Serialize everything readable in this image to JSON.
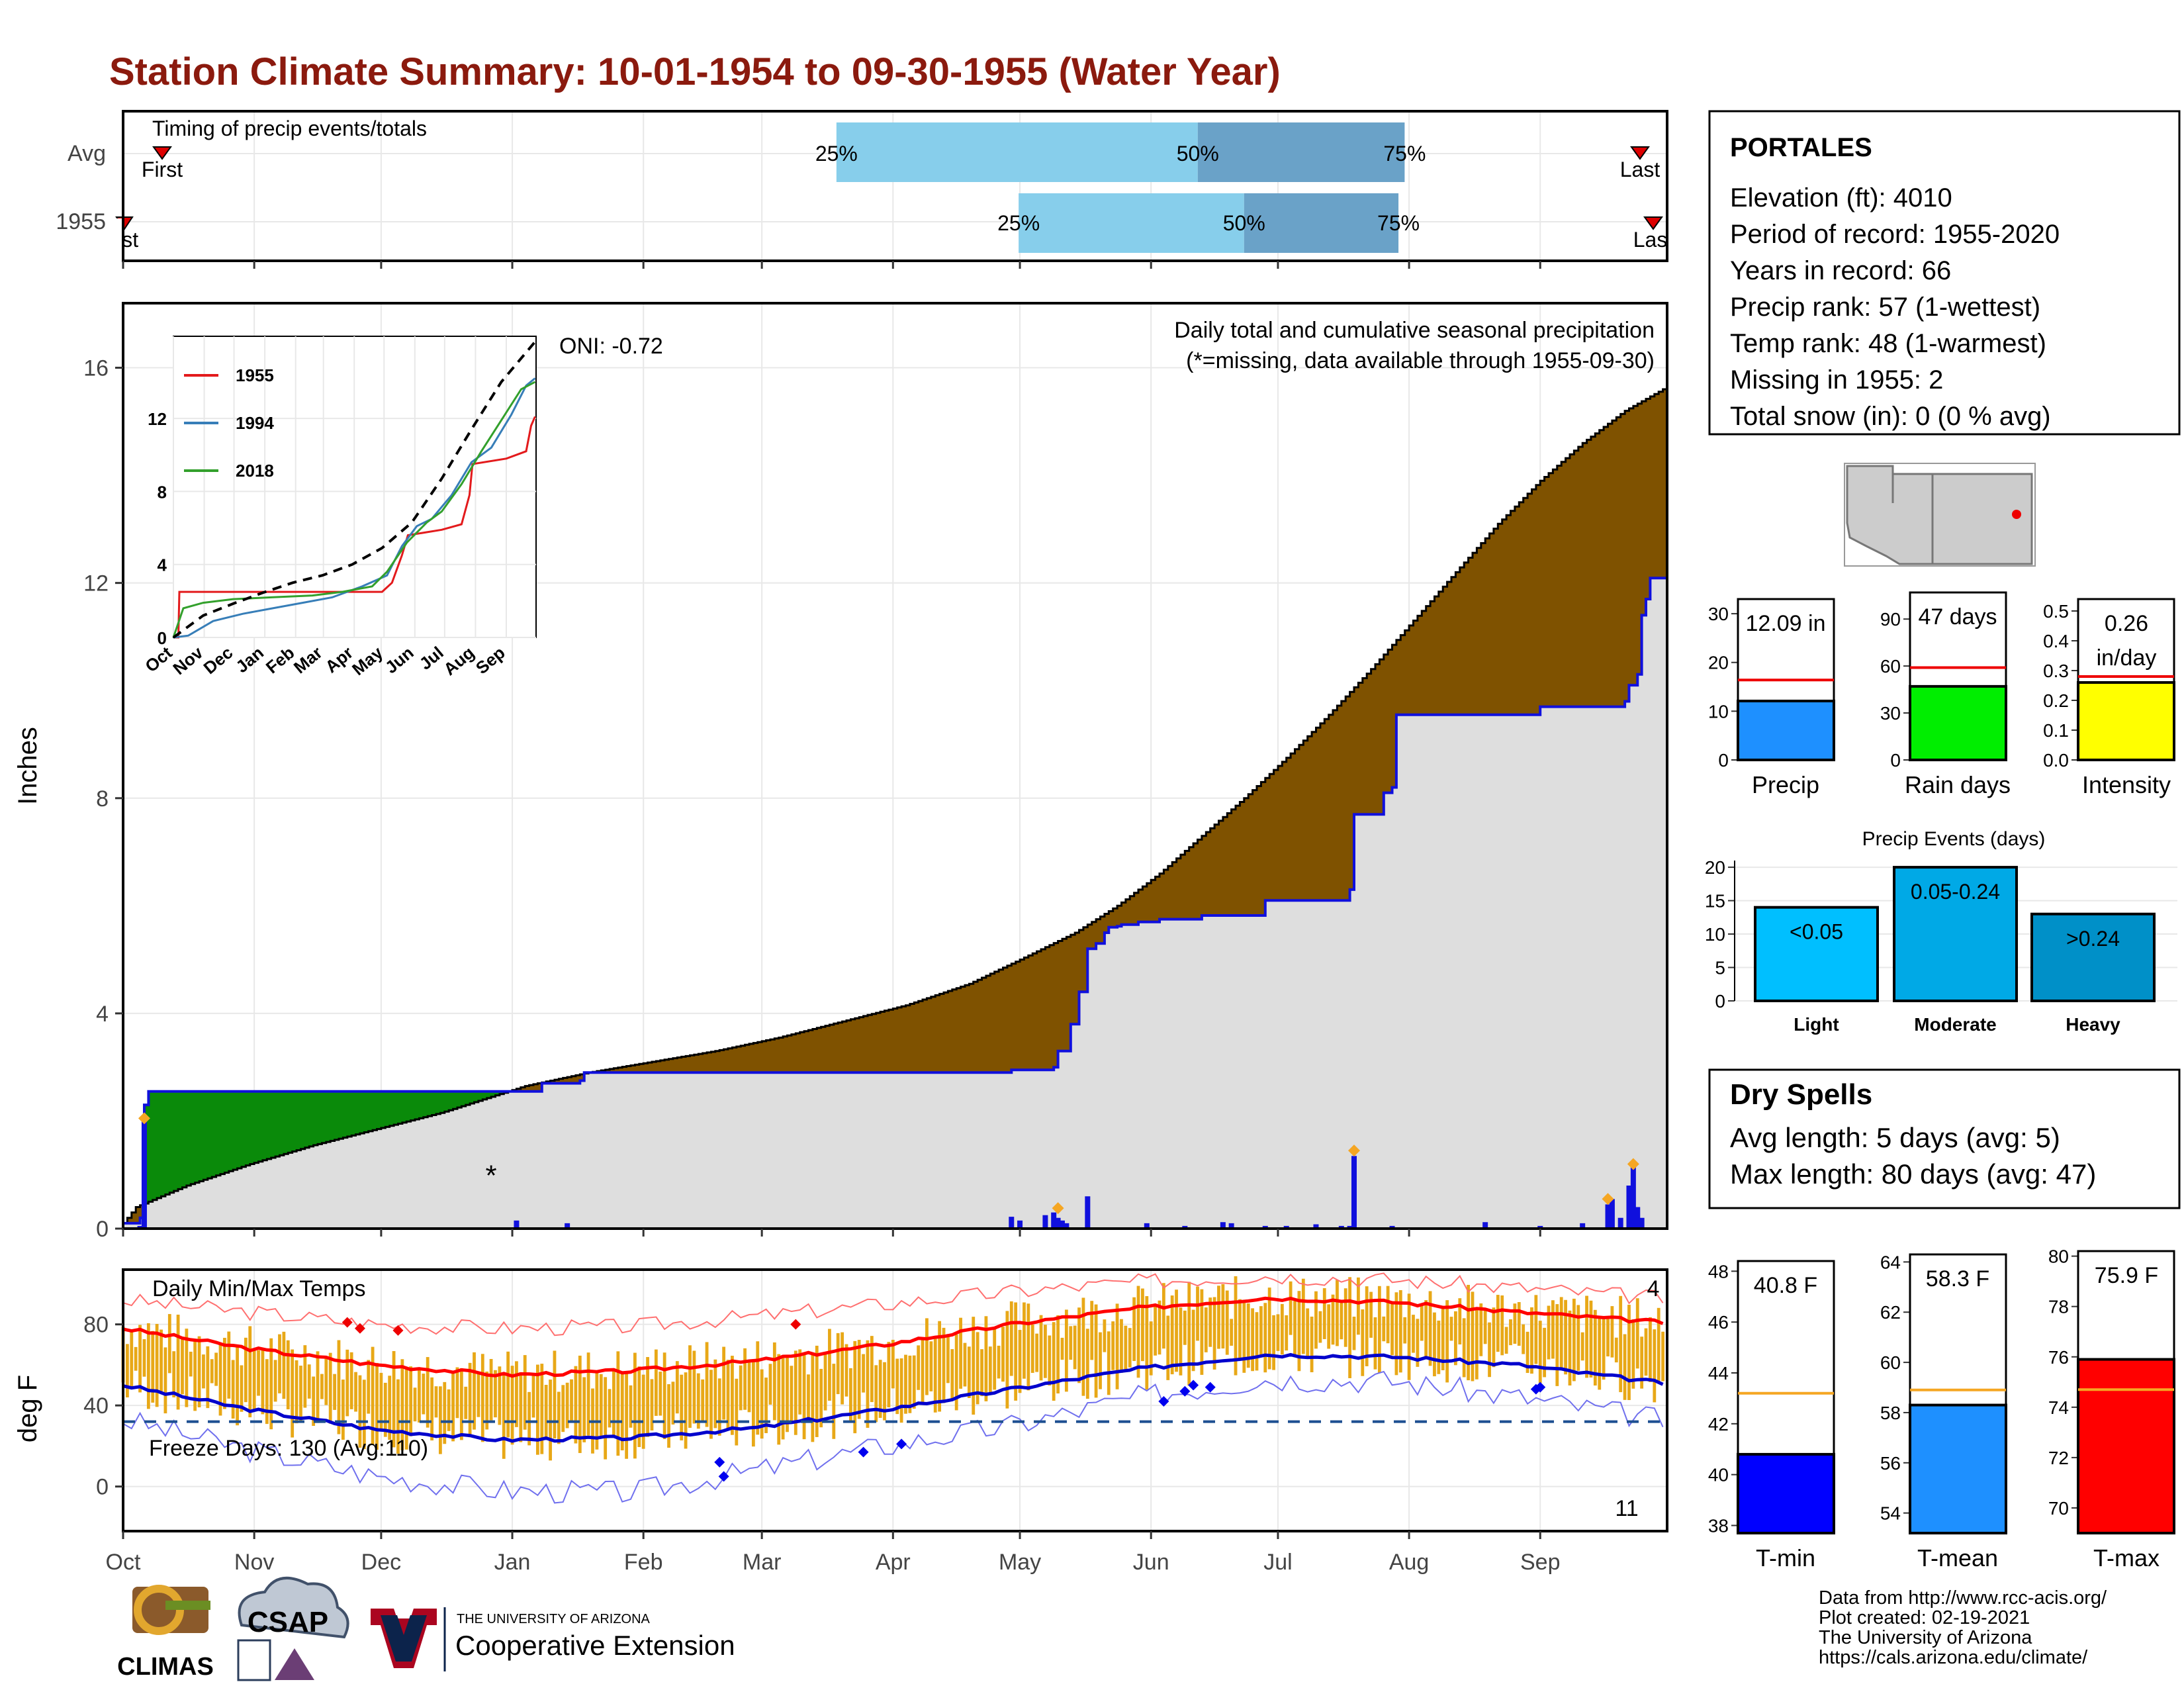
{
  "title": "Station Climate Summary: 10-01-1954 to 09-30-1955 (Water Year)",
  "colors": {
    "title": "#8b1a0e",
    "cum_obs": "#7f5200",
    "cum_wet": "#0a8a0a",
    "daily": "#1010dd",
    "bar_light": "#87ceeb",
    "bar_dark": "#6aa2c8",
    "tmax": "#ff0000",
    "tmin": "#0000cc",
    "range": "#e8a817"
  },
  "timing": {
    "label": "Timing of precip events/totals",
    "rows": [
      {
        "name": "Avg",
        "first": "First",
        "last": "Last",
        "p25": "25%",
        "p50": "50%",
        "p75": "75%",
        "v25": 0.462,
        "v50": 0.696,
        "v75": 0.83
      },
      {
        "name": "1955",
        "first": "First",
        "last": "Last",
        "p25": "25%",
        "p50": "50%",
        "p75": "75%",
        "v25": 0.58,
        "v50": 0.726,
        "v75": 0.826
      }
    ]
  },
  "station": {
    "name": "PORTALES",
    "lines": [
      "Elevation (ft): 4010",
      "Period of record: 1955-2020",
      "Years in record: 66",
      "Precip rank: 57 (1-wettest)",
      "Temp rank: 48 (1-warmest)",
      "Missing in 1955: 2",
      "Total snow (in): 0 (0 % avg)"
    ]
  },
  "chart_data": [
    {
      "type": "area",
      "name": "cumulative-precip",
      "ylabel": "Inches",
      "ylim": [
        0,
        17.2
      ],
      "yticks": [
        0,
        4,
        8,
        12,
        16
      ],
      "xticks": [
        "Oct",
        "Nov",
        "Dec",
        "Jan",
        "Feb",
        "Mar",
        "Apr",
        "May",
        "Jun",
        "Jul",
        "Aug",
        "Sep"
      ],
      "xtick_days": [
        0,
        31,
        61,
        92,
        123,
        151,
        182,
        212,
        243,
        273,
        304,
        335
      ],
      "note1": "Daily total and cumulative seasonal precipitation",
      "note2": "(*=missing, data available through 1955-09-30)",
      "oni": "ONI: -0.72",
      "average_cumulative": {
        "x": [
          0,
          3,
          15,
          30,
          45,
          60,
          75,
          85,
          95,
          110,
          125,
          140,
          155,
          170,
          185,
          200,
          212,
          225,
          235,
          245,
          255,
          265,
          275,
          285,
          295,
          305,
          315,
          325,
          335,
          345,
          355,
          364
        ],
        "y": [
          0.1,
          0.4,
          0.8,
          1.2,
          1.55,
          1.85,
          2.15,
          2.4,
          2.65,
          2.9,
          3.1,
          3.3,
          3.55,
          3.85,
          4.15,
          4.55,
          5.0,
          5.5,
          6.0,
          6.6,
          7.3,
          8.0,
          8.75,
          9.55,
          10.4,
          11.3,
          12.2,
          13.1,
          13.9,
          14.6,
          15.2,
          15.6
        ]
      },
      "observed_cumulative": {
        "x": [
          0,
          4,
          5,
          6,
          98,
          99,
          108,
          109,
          209,
          210,
          220,
          221,
          224,
          226,
          228,
          230,
          232,
          233,
          235,
          236,
          240,
          245,
          255,
          270,
          290,
          291,
          297,
          298,
          300,
          301,
          335,
          355,
          356,
          358,
          359,
          360,
          361,
          364
        ],
        "y": [
          0.1,
          0.2,
          2.3,
          2.55,
          2.55,
          2.7,
          2.75,
          2.9,
          2.9,
          2.95,
          3.0,
          3.3,
          3.8,
          4.4,
          5.2,
          5.3,
          5.5,
          5.6,
          5.62,
          5.65,
          5.7,
          5.75,
          5.82,
          6.1,
          6.3,
          7.7,
          7.7,
          8.1,
          8.2,
          9.55,
          9.7,
          9.8,
          10.1,
          10.3,
          11.4,
          11.7,
          12.09,
          12.09
        ]
      },
      "daily_bars": {
        "x": [
          4,
          5,
          93,
          105,
          210,
          212,
          218,
          220,
          221,
          222,
          223,
          228,
          242,
          251,
          260,
          262,
          270,
          275,
          282,
          288,
          290,
          291,
          300,
          322,
          335,
          345,
          351,
          352,
          354,
          356,
          357,
          358,
          359
        ],
        "y": [
          0.05,
          2.1,
          0.15,
          0.1,
          0.22,
          0.15,
          0.25,
          0.3,
          0.2,
          0.15,
          0.1,
          0.6,
          0.1,
          0.05,
          0.12,
          0.1,
          0.05,
          0.05,
          0.08,
          0.05,
          0.05,
          1.35,
          0.05,
          0.12,
          0.05,
          0.1,
          0.45,
          0.55,
          0.2,
          0.8,
          1.15,
          0.4,
          0.2
        ]
      },
      "extreme_markers": {
        "x": [
          5,
          221,
          291,
          351,
          357
        ],
        "y": [
          2.05,
          0.38,
          1.45,
          0.55,
          1.2
        ]
      },
      "missing_marker": {
        "x": 87,
        "y": 1.0,
        "symbol": "*"
      }
    },
    {
      "type": "line",
      "name": "inset-cumulative-years",
      "xticks": [
        "Oct",
        "Nov",
        "Dec",
        "Jan",
        "Feb",
        "Mar",
        "Apr",
        "May",
        "Jun",
        "Jul",
        "Aug",
        "Sep"
      ],
      "yticks": [
        0,
        4,
        8,
        12
      ],
      "ylim": [
        0,
        16.5
      ],
      "series": [
        {
          "name": "1955",
          "color": "#e31a1c",
          "x": [
            0,
            5,
            6,
            210,
            220,
            230,
            236,
            270,
            290,
            298,
            301,
            335,
            355,
            360,
            364
          ],
          "y": [
            0,
            0,
            2.5,
            2.5,
            3.0,
            4.5,
            5.6,
            5.9,
            6.2,
            7.8,
            9.5,
            9.8,
            10.2,
            11.6,
            12.1
          ]
        },
        {
          "name": "1994",
          "color": "#377eb8",
          "x": [
            0,
            15,
            40,
            70,
            100,
            130,
            160,
            190,
            215,
            230,
            245,
            260,
            280,
            300,
            320,
            340,
            355,
            364
          ],
          "y": [
            0,
            0.1,
            0.9,
            1.3,
            1.6,
            1.9,
            2.2,
            2.8,
            3.4,
            5.0,
            6.1,
            6.5,
            7.8,
            9.6,
            10.4,
            12.2,
            13.8,
            14.2
          ]
        },
        {
          "name": "2018",
          "color": "#33a02c",
          "x": [
            0,
            10,
            30,
            60,
            100,
            140,
            170,
            200,
            215,
            235,
            255,
            270,
            290,
            310,
            330,
            350,
            364
          ],
          "y": [
            0,
            1.6,
            1.9,
            2.1,
            2.2,
            2.3,
            2.5,
            2.8,
            3.6,
            5.2,
            6.3,
            6.9,
            8.4,
            10.2,
            11.9,
            13.6,
            14.0
          ]
        },
        {
          "name": "avg",
          "color": "#000000",
          "dashed": true,
          "x": [
            0,
            30,
            60,
            90,
            120,
            150,
            180,
            210,
            240,
            270,
            300,
            330,
            364
          ],
          "y": [
            0,
            1.2,
            1.85,
            2.45,
            3.0,
            3.4,
            4.0,
            4.9,
            6.3,
            8.7,
            11.4,
            14.0,
            16.2
          ]
        }
      ]
    },
    {
      "type": "bar",
      "name": "precip-total",
      "categories": [
        "Precip"
      ],
      "values": [
        12.09
      ],
      "average": 16.4,
      "label": "12.09 in",
      "ylim": [
        0,
        33
      ],
      "yticks": [
        0,
        10,
        20,
        30
      ],
      "color": "#1e90ff"
    },
    {
      "type": "bar",
      "name": "rain-days",
      "categories": [
        "Rain days"
      ],
      "values": [
        47
      ],
      "average": 59,
      "label": "47 days",
      "ylim": [
        0,
        107
      ],
      "yticks": [
        0,
        30,
        60,
        90
      ],
      "color": "#00ee00"
    },
    {
      "type": "bar",
      "name": "intensity",
      "categories": [
        "Intensity"
      ],
      "values": [
        0.26
      ],
      "average": 0.28,
      "label": "0.26",
      "label2": "in/day",
      "ylim": [
        0,
        0.54
      ],
      "yticks": [
        0.0,
        0.1,
        0.2,
        0.3,
        0.4,
        0.5
      ],
      "ytick_labels": [
        "0.0",
        "0.1",
        "0.2",
        "0.3",
        "0.4",
        "0.5"
      ],
      "color": "#ffff00"
    },
    {
      "type": "bar",
      "name": "precip-events",
      "title": "Precip Events (days)",
      "categories": [
        "Light",
        "Moderate",
        "Heavy"
      ],
      "values": [
        14,
        20,
        13
      ],
      "bar_labels": [
        "<0.05",
        "0.05-0.24",
        ">0.24"
      ],
      "colors": [
        "#00bfff",
        "#00a9e6",
        "#0090c8"
      ],
      "ylim": [
        0,
        21
      ],
      "yticks": [
        0,
        5,
        10,
        15,
        20
      ]
    },
    {
      "type": "line",
      "name": "daily-temps",
      "title": "Daily Min/Max Temps",
      "ylabel": "deg F",
      "ylim": [
        -22,
        107
      ],
      "yticks": [
        0,
        40,
        80
      ],
      "xticks": [
        "Oct",
        "Nov",
        "Dec",
        "Jan",
        "Feb",
        "Mar",
        "Apr",
        "May",
        "Jun",
        "Jul",
        "Aug",
        "Sep"
      ],
      "freeze_label": "Freeze Days: 130 (Avg:110)",
      "freeze_line": 32,
      "count_top": "4",
      "count_bottom": "11",
      "avg_max": {
        "x": [
          0,
          30,
          60,
          90,
          120,
          150,
          180,
          210,
          240,
          270,
          300,
          330,
          364
        ],
        "y": [
          78,
          68,
          60,
          55,
          57,
          62,
          70,
          80,
          88,
          93,
          91,
          86,
          81
        ]
      },
      "avg_min": {
        "x": [
          0,
          30,
          60,
          90,
          120,
          150,
          180,
          210,
          240,
          270,
          300,
          330,
          364
        ],
        "y": [
          50,
          38,
          28,
          23,
          24,
          29,
          38,
          48,
          58,
          65,
          64,
          60,
          51
        ]
      },
      "record_max": {
        "x": [
          0,
          30,
          60,
          90,
          120,
          150,
          180,
          210,
          240,
          270,
          300,
          330,
          364
        ],
        "y": [
          92,
          86,
          80,
          78,
          79,
          84,
          90,
          96,
          101,
          104,
          102,
          98,
          93
        ]
      },
      "record_min": {
        "x": [
          0,
          30,
          60,
          90,
          120,
          150,
          180,
          210,
          240,
          270,
          300,
          330,
          364
        ],
        "y": [
          33,
          18,
          5,
          -2,
          -3,
          8,
          20,
          30,
          44,
          53,
          52,
          44,
          33
        ]
      },
      "record_high_marks": {
        "x": [
          53,
          56,
          65,
          159
        ],
        "y": [
          81,
          78,
          77,
          80
        ]
      },
      "record_low_marks": {
        "x": [
          141,
          142,
          175,
          184,
          246,
          251,
          253,
          257,
          334,
          335
        ],
        "y": [
          12,
          5,
          17,
          21,
          42,
          47,
          50,
          49,
          48,
          49
        ]
      }
    },
    {
      "type": "bar",
      "name": "tmin",
      "categories": [
        "T-min"
      ],
      "values": [
        40.8
      ],
      "average": 43.2,
      "label": "40.8 F",
      "ylim": [
        37.7,
        48.4
      ],
      "yticks": [
        38,
        40,
        42,
        44,
        46,
        48
      ],
      "color": "#0000ff"
    },
    {
      "type": "bar",
      "name": "tmean",
      "categories": [
        "T-mean"
      ],
      "values": [
        58.3
      ],
      "average": 58.9,
      "label": "58.3 F",
      "ylim": [
        53.2,
        64.3
      ],
      "yticks": [
        54,
        56,
        58,
        60,
        62,
        64
      ],
      "color": "#1e90ff"
    },
    {
      "type": "bar",
      "name": "tmax",
      "categories": [
        "T-max"
      ],
      "values": [
        75.9
      ],
      "average": 74.7,
      "label": "75.9 F",
      "ylim": [
        69.0,
        80.2
      ],
      "yticks": [
        70,
        72,
        74,
        76,
        78,
        80
      ],
      "color": "#ff0000"
    }
  ],
  "dry_spells": {
    "title": "Dry Spells",
    "avg_line": "Avg length: 5 days (avg: 5)",
    "max_line": "Max length: 80 days (avg: 47)"
  },
  "footer": {
    "credits": [
      "Data from http://www.rcc-acis.org/",
      "Plot created: 02-19-2021",
      "The University of Arizona",
      "https://cals.arizona.edu/climate/"
    ],
    "logo_climas": "CLIMAS",
    "logo_csap": "CSAP",
    "logo_ua_small": "THE UNIVERSITY OF ARIZONA",
    "logo_ua_big": "Cooperative Extension"
  }
}
